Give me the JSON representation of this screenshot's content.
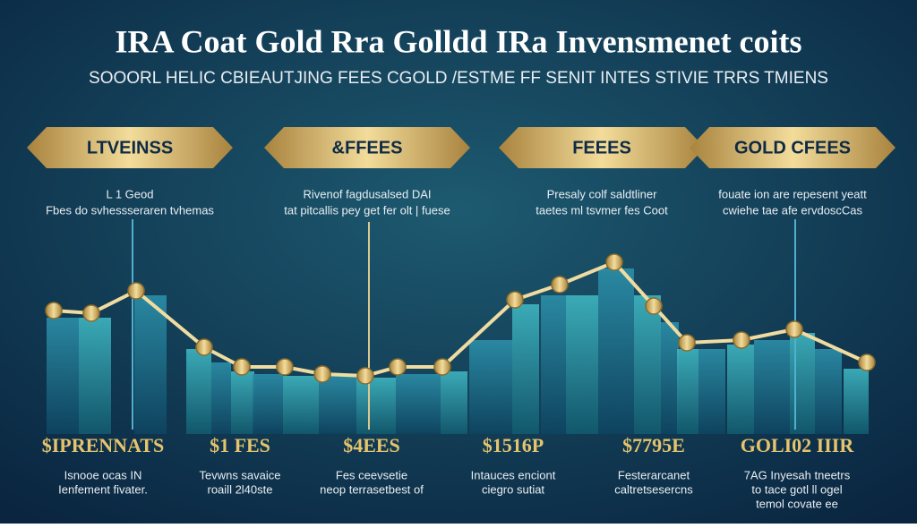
{
  "header": {
    "title": "IRA Coat Gold Rra Golldd IRa Invensmenet coits",
    "subtitle": "SOOORL HELIC CBIEAUTJING FEES CGOLD /ESTME FF SENIT INTES STIVIE TRRS TMIENS"
  },
  "banners": [
    {
      "label": "LTVEINSS",
      "notes": [
        "L 1 Geod",
        "Fbes do svhessseraren tvhemas"
      ]
    },
    {
      "label": "&FFEES",
      "notes": [
        "Rivenof fagdusalsed DAI",
        "tat pitcallis pey get fer olt | fuese"
      ]
    },
    {
      "label": "FEEES",
      "notes": [
        "Presaly colf saldtliner",
        "taetes ml tsvmer fes Coot"
      ]
    },
    {
      "label": "GOLD CFEES",
      "notes": [
        "fouate ion are repesent yeatt",
        "cwiehe tae afe ervdoscCas"
      ]
    }
  ],
  "footer": [
    {
      "label": "$IPRENNATS",
      "lines": [
        "Isnooe ocas IN",
        "Ienfement fivater."
      ]
    },
    {
      "label": "$1 FES",
      "lines": [
        "Tevwns savaice",
        "roaill 2l40ste"
      ]
    },
    {
      "label": "$4EES",
      "lines": [
        "Fes ceevsetie",
        "neop terrasetbest of"
      ]
    },
    {
      "label": "$1516P",
      "lines": [
        "Intauces enciont",
        "ciegro sutiat"
      ]
    },
    {
      "label": "$7795E",
      "lines": [
        "Festerarcanet",
        "caltretsesercns"
      ]
    },
    {
      "label": "GOLI02 IIIR",
      "lines": [
        "7AG Inyesah tneetrs",
        "to tace gotl ll ogel",
        "temol covate ee"
      ]
    }
  ]
}
